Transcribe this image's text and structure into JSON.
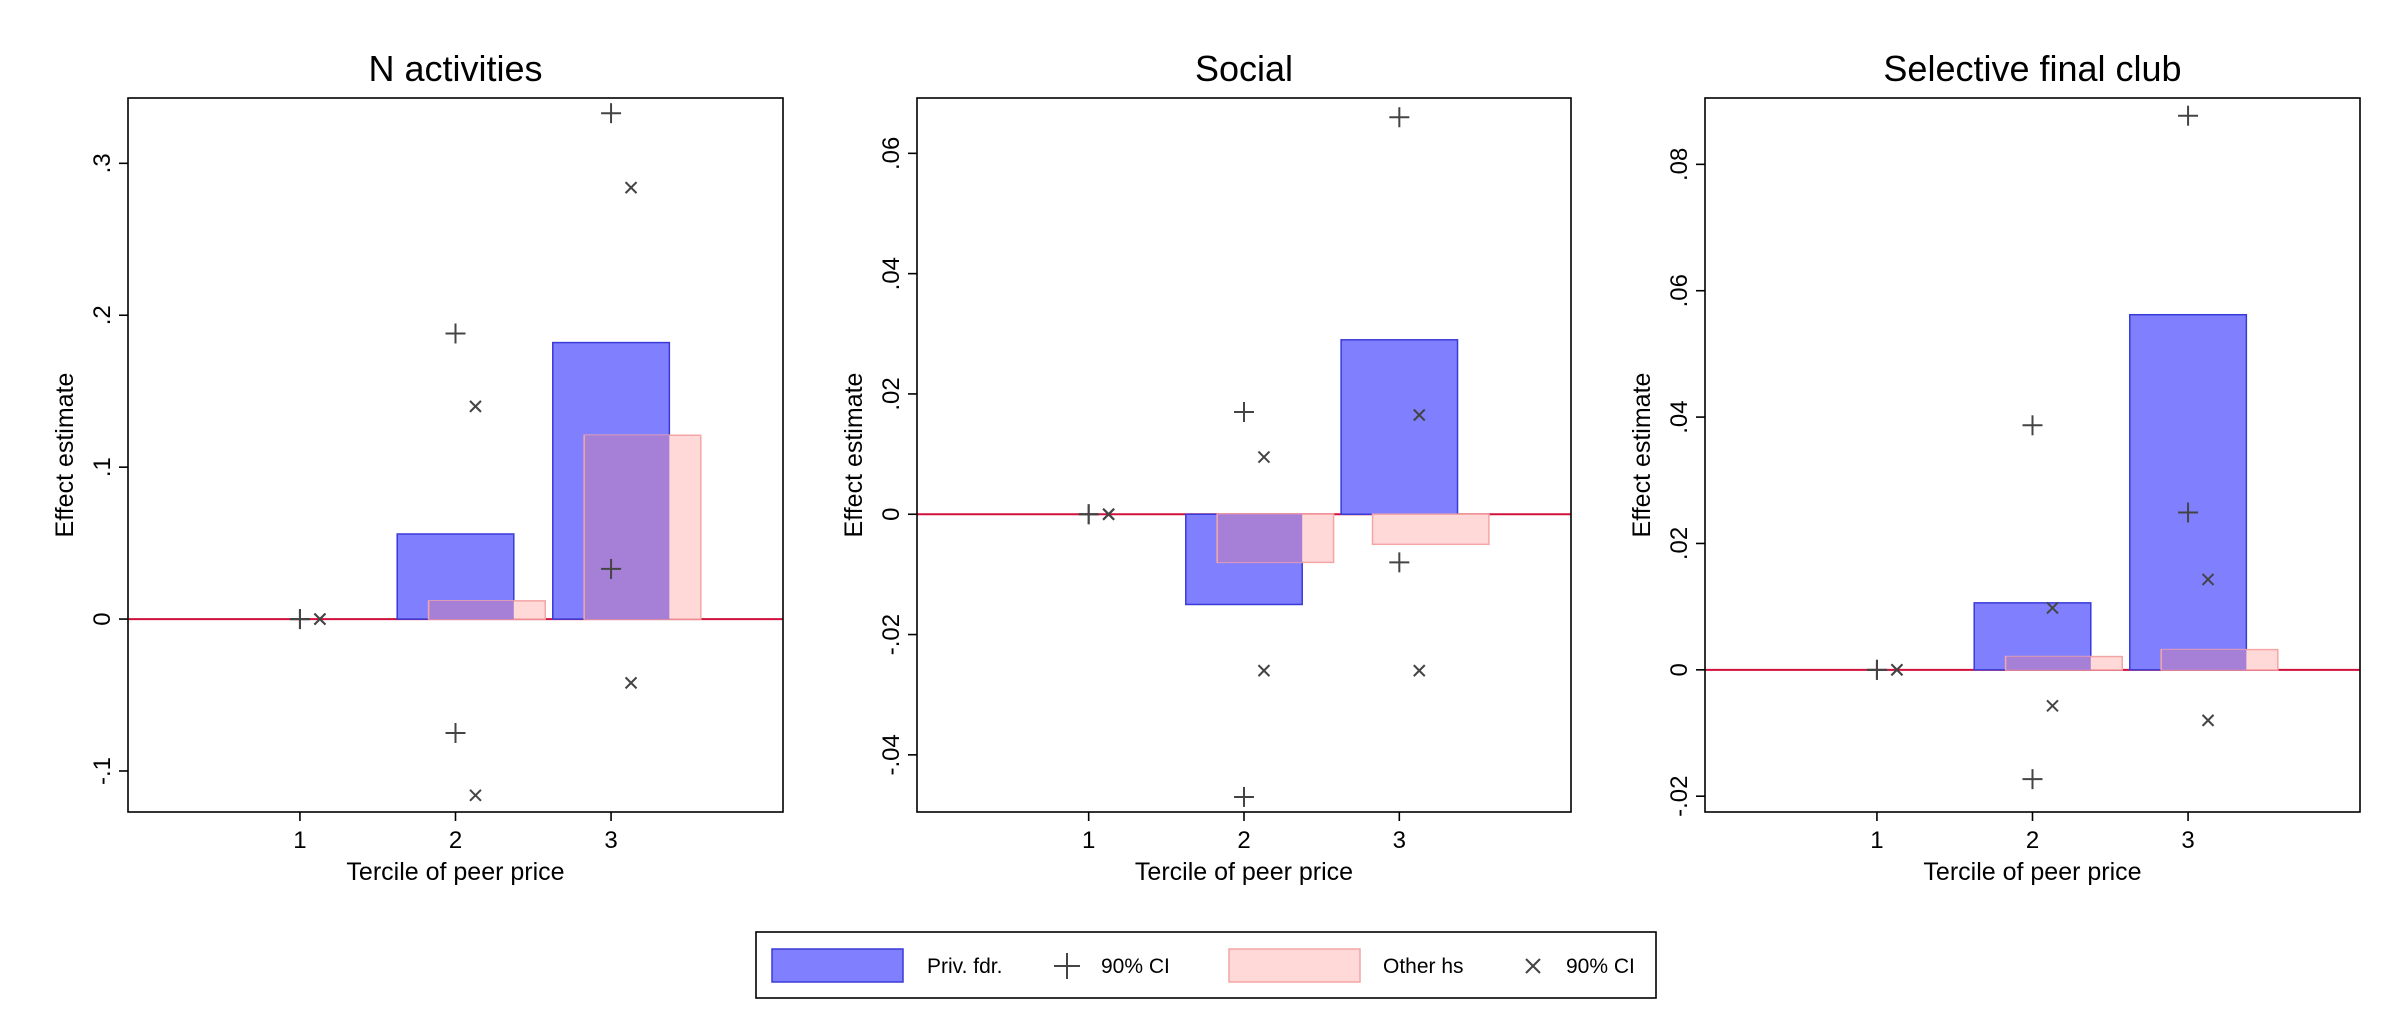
{
  "chart_data": [
    {
      "type": "bar",
      "title": "N activities",
      "xlabel": "Tercile of peer price",
      "ylabel": "Effect estimate",
      "categories": [
        "1",
        "2",
        "3"
      ],
      "yticks": [
        -0.1,
        0,
        0.1,
        0.2,
        0.3
      ],
      "ytick_labels": [
        "-.1",
        "0",
        ".1",
        ".2",
        ".3"
      ],
      "ylim": [
        -0.127,
        0.343
      ],
      "series": [
        {
          "name": "Priv. fdr.",
          "values": [
            0,
            0.056,
            0.182
          ],
          "ci_upper": [
            0,
            0.188,
            0.333
          ],
          "ci_lower": [
            0,
            -0.075,
            0.033
          ]
        },
        {
          "name": "Other hs",
          "values": [
            0,
            0.012,
            0.121
          ],
          "ci_upper": [
            0,
            0.14,
            0.284
          ],
          "ci_lower": [
            0,
            -0.116,
            -0.042
          ]
        }
      ]
    },
    {
      "type": "bar",
      "title": "Social",
      "xlabel": "Tercile of peer price",
      "ylabel": "Effect estimate",
      "categories": [
        "1",
        "2",
        "3"
      ],
      "yticks": [
        -0.04,
        -0.02,
        0,
        0.02,
        0.04,
        0.06
      ],
      "ytick_labels": [
        "-.04",
        "-.02",
        "0",
        ".02",
        ".04",
        ".06"
      ],
      "ylim": [
        -0.0495,
        0.0692
      ],
      "series": [
        {
          "name": "Priv. fdr.",
          "values": [
            0,
            -0.015,
            0.029
          ],
          "ci_upper": [
            0,
            0.017,
            0.066
          ],
          "ci_lower": [
            0,
            -0.047,
            -0.008
          ]
        },
        {
          "name": "Other hs",
          "values": [
            0,
            -0.008,
            -0.005
          ],
          "ci_upper": [
            0,
            0.0095,
            0.0165
          ],
          "ci_lower": [
            0,
            -0.026,
            -0.026
          ]
        }
      ]
    },
    {
      "type": "bar",
      "title": "Selective final club",
      "xlabel": "Tercile of peer price",
      "ylabel": "Effect estimate",
      "categories": [
        "1",
        "2",
        "3"
      ],
      "yticks": [
        -0.02,
        0,
        0.02,
        0.04,
        0.06,
        0.08
      ],
      "ytick_labels": [
        "-.02",
        "0",
        ".02",
        ".04",
        ".06",
        ".08"
      ],
      "ylim": [
        -0.0225,
        0.0905
      ],
      "series": [
        {
          "name": "Priv. fdr.",
          "values": [
            0,
            0.0106,
            0.0562
          ],
          "ci_upper": [
            0,
            0.0387,
            0.0877
          ],
          "ci_lower": [
            0,
            -0.0173,
            0.0249
          ]
        },
        {
          "name": "Other hs",
          "values": [
            0,
            0.0021,
            0.0032
          ],
          "ci_upper": [
            0,
            0.0098,
            0.0143
          ],
          "ci_lower": [
            0,
            -0.0057,
            -0.008
          ]
        }
      ]
    }
  ],
  "legend": {
    "position": "bottom",
    "items": [
      {
        "label": "Priv. fdr.",
        "symbol": "bar",
        "series": 0
      },
      {
        "label": "90% CI",
        "symbol": "plus",
        "series": 0
      },
      {
        "label": "Other hs",
        "symbol": "bar",
        "series": 1
      },
      {
        "label": "90% CI",
        "symbol": "x",
        "series": 1
      }
    ]
  },
  "colors": {
    "priv_fill": "#8080ff",
    "priv_stroke": "#3a3ad8",
    "other_fill": "#ffd8d8",
    "other_stroke": "#f4a6a6",
    "overlap_fill": "#a67fd6",
    "zero_line": "#d0103a",
    "marker": "#444444"
  }
}
